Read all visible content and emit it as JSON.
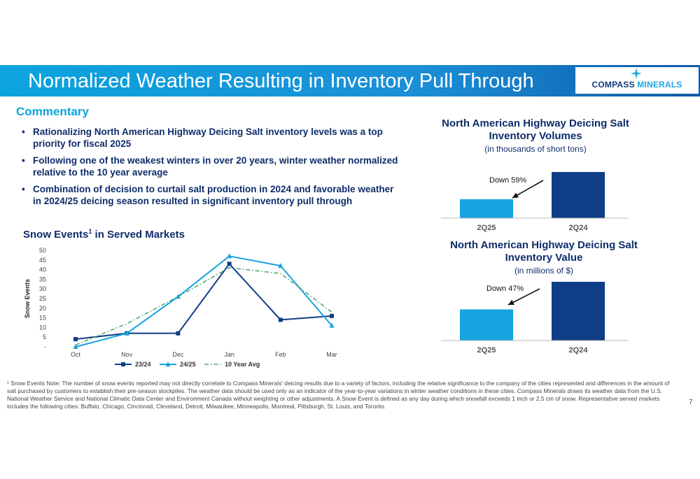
{
  "title": "Normalized Weather Resulting in Inventory Pull Through",
  "logo": {
    "part1": "COMPASS",
    "part2": "MINERALS"
  },
  "commentary": {
    "heading": "Commentary",
    "bullets": [
      "Rationalizing North American Highway Deicing Salt inventory levels was a top priority for fiscal 2025",
      "Following one of the weakest winters in over 20 years, winter weather normalized relative to the 10 year average",
      "Combination of decision to curtail salt production in 2024 and favorable weather in 2024/25 deicing season resulted in significant inventory pull through"
    ]
  },
  "snow_heading": {
    "text": "Snow Events",
    "sup": "1",
    "suffix": " in Served Markets"
  },
  "volume_chart": {
    "title_line1": "North American Highway Deicing Salt",
    "title_line2": "Inventory Volumes",
    "subtitle": "(in thousands of short tons)",
    "annotation": "Down 59%"
  },
  "value_chart": {
    "title_line1": "North American Highway Deicing Salt",
    "title_line2": "Inventory Value",
    "subtitle": "(in millions of $)",
    "annotation": "Down 47%"
  },
  "chart_data": [
    {
      "type": "line",
      "ylabel": "Snow Events",
      "categories": [
        "Oct",
        "Nov",
        "Dec",
        "Jan",
        "Feb",
        "Mar"
      ],
      "ylim": [
        0,
        50
      ],
      "yticks": [
        "-",
        "5",
        "10",
        "15",
        "20",
        "25",
        "30",
        "35",
        "40",
        "45",
        "50"
      ],
      "legend_position": "bottom",
      "series": [
        {
          "name": "23/24",
          "values": [
            4,
            7,
            7,
            43,
            14,
            16
          ],
          "color": "#0f3d86",
          "marker": "square"
        },
        {
          "name": "24/25",
          "values": [
            0,
            7,
            26,
            47,
            42,
            11
          ],
          "color": "#16a3e0",
          "marker": "triangle"
        },
        {
          "name": "10 Year Avg",
          "values": [
            1,
            12,
            26,
            41,
            38,
            18
          ],
          "color": "#2e9a55",
          "dash": "dash-dot"
        }
      ]
    },
    {
      "type": "bar",
      "categories": [
        "2Q25",
        "2Q24"
      ],
      "values": [
        41,
        100
      ],
      "colors": [
        "#16a3e0",
        "#0f3d86"
      ],
      "note": "relative heights; no values printed"
    },
    {
      "type": "bar",
      "categories": [
        "2Q25",
        "2Q24"
      ],
      "values": [
        53,
        100
      ],
      "colors": [
        "#16a3e0",
        "#0f3d86"
      ],
      "note": "relative heights; no values printed"
    }
  ],
  "footnote": "¹ Snow Events Note: The number of snow events reported may not directly correlate to Compass Minerals' deicing results due to a variety of factors, including the relative significance to the company of the cities represented and differences in the amount of salt purchased by customers to establish their pre-season stockpiles. The weather data should be used only as an indicator of the year-to-year variations in winter weather conditions in these cities. Compass Minerals draws its weather data from the U.S. National Weather Service and National Climatic Data Center and Environment Canada without weighting or other adjustments.  A Snow Event is defined as any day during which snowfall exceeds 1 inch or 2.5 cm of snow.  Representative served markets includes the following cities: Buffalo, Chicago, Cincinnati, Cleveland, Detroit, Milwaukee, Minneapolis, Montreal, Pittsburgh, St. Louis, and Toronto.",
  "page_number": "7"
}
